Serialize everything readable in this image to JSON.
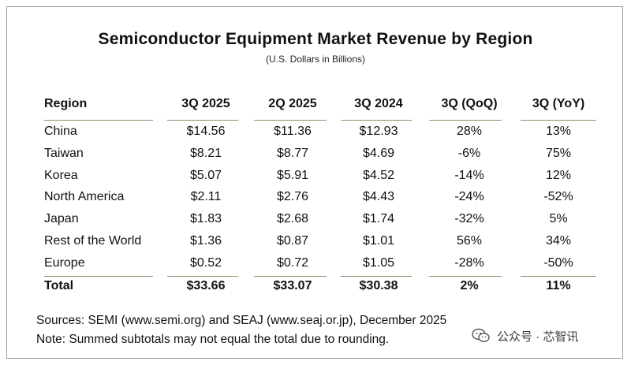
{
  "chart_data": {
    "type": "table",
    "title": "Semiconductor Equipment Market Revenue by Region",
    "subtitle": "(U.S. Dollars in Billions)",
    "columns": [
      "Region",
      "3Q 2025",
      "2Q 2025",
      "3Q 2024",
      "3Q (QoQ)",
      "3Q (YoY)"
    ],
    "rows": [
      [
        "China",
        "$14.56",
        "$11.36",
        "$12.93",
        "28%",
        "13%"
      ],
      [
        "Taiwan",
        "$8.21",
        "$8.77",
        "$4.69",
        "-6%",
        "75%"
      ],
      [
        "Korea",
        "$5.07",
        "$5.91",
        "$4.52",
        "-14%",
        "12%"
      ],
      [
        "North America",
        "$2.11",
        "$2.76",
        "$4.43",
        "-24%",
        "-52%"
      ],
      [
        "Japan",
        "$1.83",
        "$2.68",
        "$1.74",
        "-32%",
        "5%"
      ],
      [
        "Rest of the World",
        "$1.36",
        "$0.87",
        "$1.01",
        "56%",
        "34%"
      ],
      [
        "Europe",
        "$0.52",
        "$0.72",
        "$1.05",
        "-28%",
        "-50%"
      ]
    ],
    "total": [
      "Total",
      "$33.66",
      "$33.07",
      "$30.38",
      "2%",
      "11%"
    ],
    "notes": [
      "Sources: SEMI (www.semi.org) and SEAJ (www.seaj.or.jp), December 2025",
      "Note: Summed subtotals may not equal the total due to rounding."
    ]
  },
  "watermark": {
    "text": "公众号 · 芯智讯",
    "icon": "wechat-icon",
    "color": "#3a3a3a"
  }
}
